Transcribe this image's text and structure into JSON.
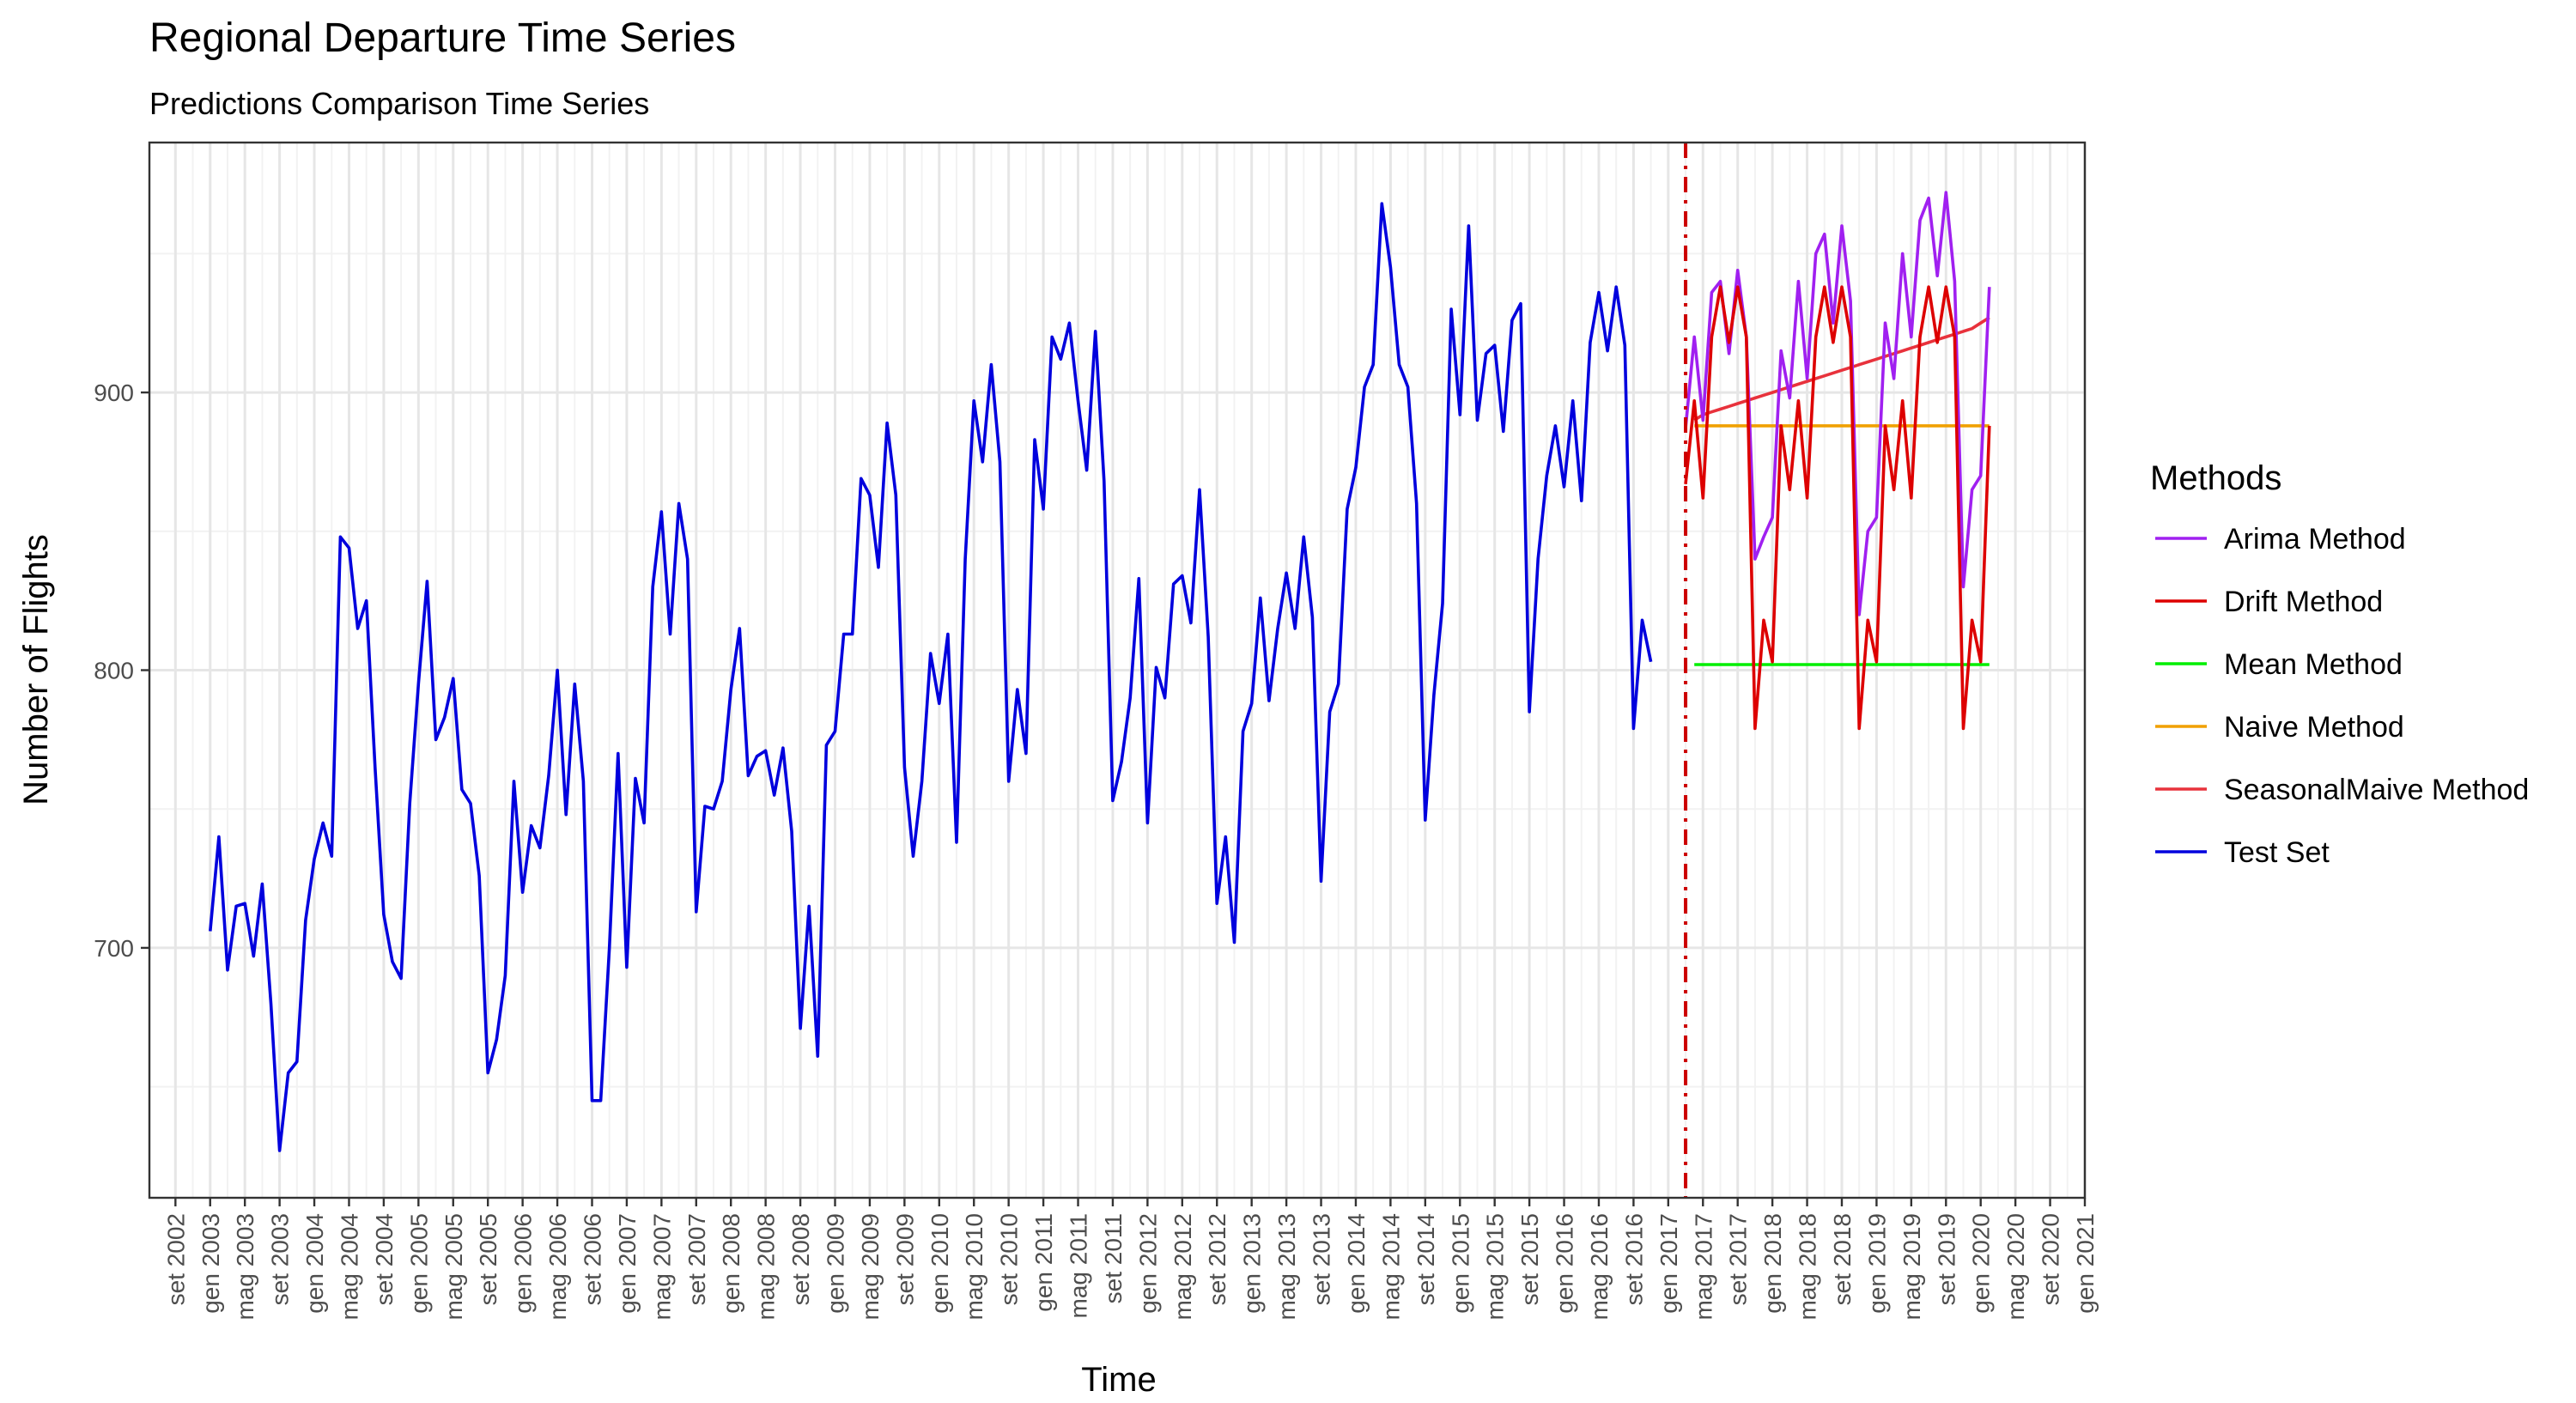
{
  "chart_data": {
    "type": "line",
    "title": "Regional Departure Time Series",
    "subtitle": "Predictions Comparison Time Series",
    "xlabel": "Time",
    "ylabel": "Number of Flights",
    "x_range": [
      "2002-06",
      "2021-01"
    ],
    "ylim": [
      610,
      990
    ],
    "y_ticks": [
      700,
      800,
      900
    ],
    "x_ticks": [
      "set 2002",
      "gen 2003",
      "mag 2003",
      "set 2003",
      "gen 2004",
      "mag 2004",
      "set 2004",
      "gen 2005",
      "mag 2005",
      "set 2005",
      "gen 2006",
      "mag 2006",
      "set 2006",
      "gen 2007",
      "mag 2007",
      "set 2007",
      "gen 2008",
      "mag 2008",
      "set 2008",
      "gen 2009",
      "mag 2009",
      "set 2009",
      "gen 2010",
      "mag 2010",
      "set 2010",
      "gen 2011",
      "mag 2011",
      "set 2011",
      "gen 2012",
      "mag 2012",
      "set 2012",
      "gen 2013",
      "mag 2013",
      "set 2013",
      "gen 2014",
      "mag 2014",
      "set 2014",
      "gen 2015",
      "mag 2015",
      "set 2015",
      "gen 2016",
      "mag 2016",
      "set 2016",
      "gen 2017",
      "mag 2017",
      "set 2017",
      "gen 2018",
      "mag 2018",
      "set 2018",
      "gen 2019",
      "mag 2019",
      "set 2019",
      "gen 2020",
      "mag 2020",
      "set 2020",
      "gen 2021"
    ],
    "grid": true,
    "legend_title": "Methods",
    "legend_position": "right",
    "vline": {
      "x": "2017-03",
      "color": "#cc0000",
      "style": "dotdash"
    },
    "series": [
      {
        "name": "Test Set",
        "color": "#0000dd",
        "start": "2003-01",
        "values": [
          706,
          740,
          692,
          715,
          716,
          697,
          723,
          680,
          627,
          655,
          659,
          710,
          732,
          745,
          733,
          848,
          844,
          815,
          825,
          765,
          712,
          695,
          689,
          752,
          795,
          832,
          775,
          783,
          797,
          757,
          752,
          726,
          655,
          667,
          690,
          760,
          720,
          744,
          736,
          762,
          800,
          748,
          795,
          760,
          645,
          645,
          700,
          770,
          693,
          761,
          745,
          830,
          857,
          813,
          860,
          840,
          713,
          751,
          750,
          760,
          793,
          815,
          762,
          769,
          771,
          755,
          772,
          742,
          671,
          715,
          661,
          773,
          778,
          813,
          813,
          869,
          863,
          837,
          889,
          863,
          765,
          733,
          760,
          806,
          788,
          813,
          738,
          840,
          897,
          875,
          910,
          875,
          760,
          793,
          770,
          883,
          858,
          920,
          912,
          925,
          897,
          872,
          922,
          868,
          753,
          767,
          790,
          833,
          745,
          801,
          790,
          831,
          834,
          817,
          865,
          812,
          716,
          740,
          702,
          778,
          788,
          826,
          789,
          815,
          835,
          815,
          848,
          819,
          724,
          785,
          795,
          858,
          873,
          902,
          910,
          968,
          945,
          910,
          902,
          860,
          746,
          791,
          824,
          930,
          892,
          960,
          890,
          914,
          917,
          886,
          926,
          932,
          785,
          840,
          870,
          888,
          866,
          897,
          861,
          918,
          936,
          915,
          938,
          917,
          779,
          818,
          803
        ]
      },
      {
        "name": "Arima Method",
        "color": "#a020f0",
        "start": "2017-03",
        "values": [
          887,
          920,
          890,
          936,
          940,
          914,
          944,
          920,
          840,
          848,
          855,
          915,
          898,
          940,
          905,
          950,
          957,
          925,
          960,
          933,
          820,
          850,
          855,
          925,
          905,
          950,
          920,
          962,
          970,
          942,
          972,
          940,
          830,
          865,
          870,
          938
        ]
      },
      {
        "name": "Drift Method",
        "color": "#dd0000",
        "start": "2017-03",
        "values": [
          867,
          897,
          862,
          920,
          938,
          918,
          938,
          920,
          779,
          818,
          803,
          888,
          865,
          897,
          862,
          920,
          938,
          918,
          938,
          920,
          779,
          818,
          803,
          888,
          865,
          897,
          862,
          920,
          938,
          918,
          938,
          920,
          779,
          818,
          803,
          888
        ]
      },
      {
        "name": "Mean Method",
        "color": "#00ee00",
        "start": "2017-04",
        "values": [
          802,
          802,
          802,
          802,
          802,
          802,
          802,
          802,
          802,
          802,
          802,
          802,
          802,
          802,
          802,
          802,
          802,
          802,
          802,
          802,
          802,
          802,
          802,
          802,
          802,
          802,
          802,
          802,
          802,
          802,
          802,
          802,
          802,
          802,
          802
        ]
      },
      {
        "name": "Naive Method",
        "color": "#f0a000",
        "start": "2017-04",
        "values": [
          888,
          888,
          888,
          888,
          888,
          888,
          888,
          888,
          888,
          888,
          888,
          888,
          888,
          888,
          888,
          888,
          888,
          888,
          888,
          888,
          888,
          888,
          888,
          888,
          888,
          888,
          888,
          888,
          888,
          888,
          888,
          888,
          888,
          888,
          888
        ]
      },
      {
        "name": "SeasonalMaive Method",
        "color": "#e8323c",
        "start": "2017-04",
        "values": [
          890,
          892,
          893,
          894,
          895,
          896,
          897,
          898,
          899,
          900,
          901,
          902,
          903,
          904,
          905,
          906,
          907,
          908,
          909,
          910,
          911,
          912,
          913,
          914,
          915,
          916,
          917,
          918,
          919,
          920,
          921,
          922,
          923,
          925,
          927
        ]
      }
    ],
    "legend_order": [
      "Arima Method",
      "Drift Method",
      "Mean Method",
      "Naive Method",
      "SeasonalMaive Method",
      "Test Set"
    ]
  }
}
